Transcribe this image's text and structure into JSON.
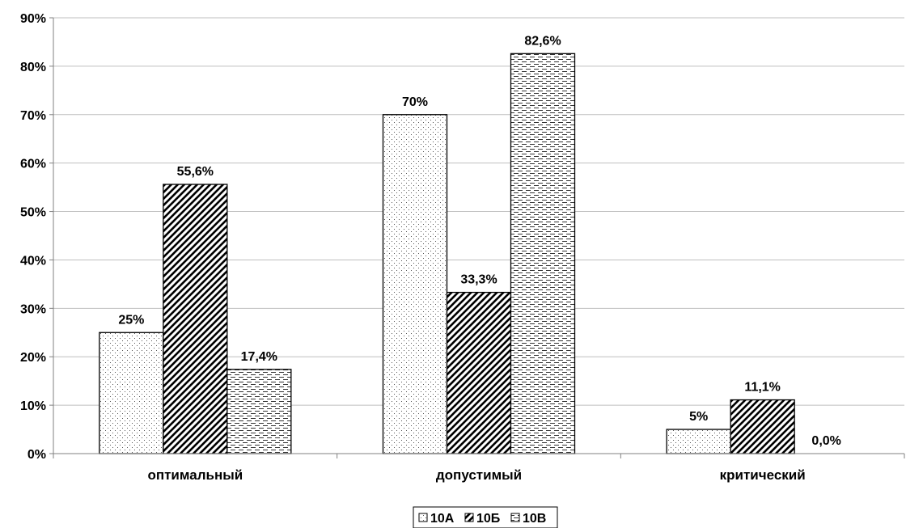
{
  "chart_data": {
    "type": "bar",
    "categories": [
      "оптимальный",
      "допустимый",
      "критический"
    ],
    "series": [
      {
        "name": "10А",
        "values": [
          25,
          70,
          5
        ],
        "labels": [
          "25%",
          "70%",
          "5%"
        ],
        "pattern": "dots"
      },
      {
        "name": "10Б",
        "values": [
          55.6,
          33.3,
          11.1
        ],
        "labels": [
          "55,6%",
          "33,3%",
          "11,1%"
        ],
        "pattern": "diagonal"
      },
      {
        "name": "10В",
        "values": [
          17.4,
          82.6,
          0
        ],
        "labels": [
          "17,4%",
          "82,6%",
          "0,0%"
        ],
        "pattern": "dashes"
      }
    ],
    "ylim": [
      0,
      90
    ],
    "yticks": [
      0,
      10,
      20,
      30,
      40,
      50,
      60,
      70,
      80,
      90
    ],
    "ytick_labels": [
      "0%",
      "10%",
      "20%",
      "30%",
      "40%",
      "50%",
      "60%",
      "70%",
      "80%",
      "90%"
    ],
    "title": "",
    "xlabel": "",
    "ylabel": "",
    "grid": true,
    "legend_position": "bottom-center",
    "colors": {
      "bar_fill": "#ffffff",
      "bar_stroke": "#000000",
      "grid": "#bfbfbf",
      "axis": "#808080"
    }
  }
}
